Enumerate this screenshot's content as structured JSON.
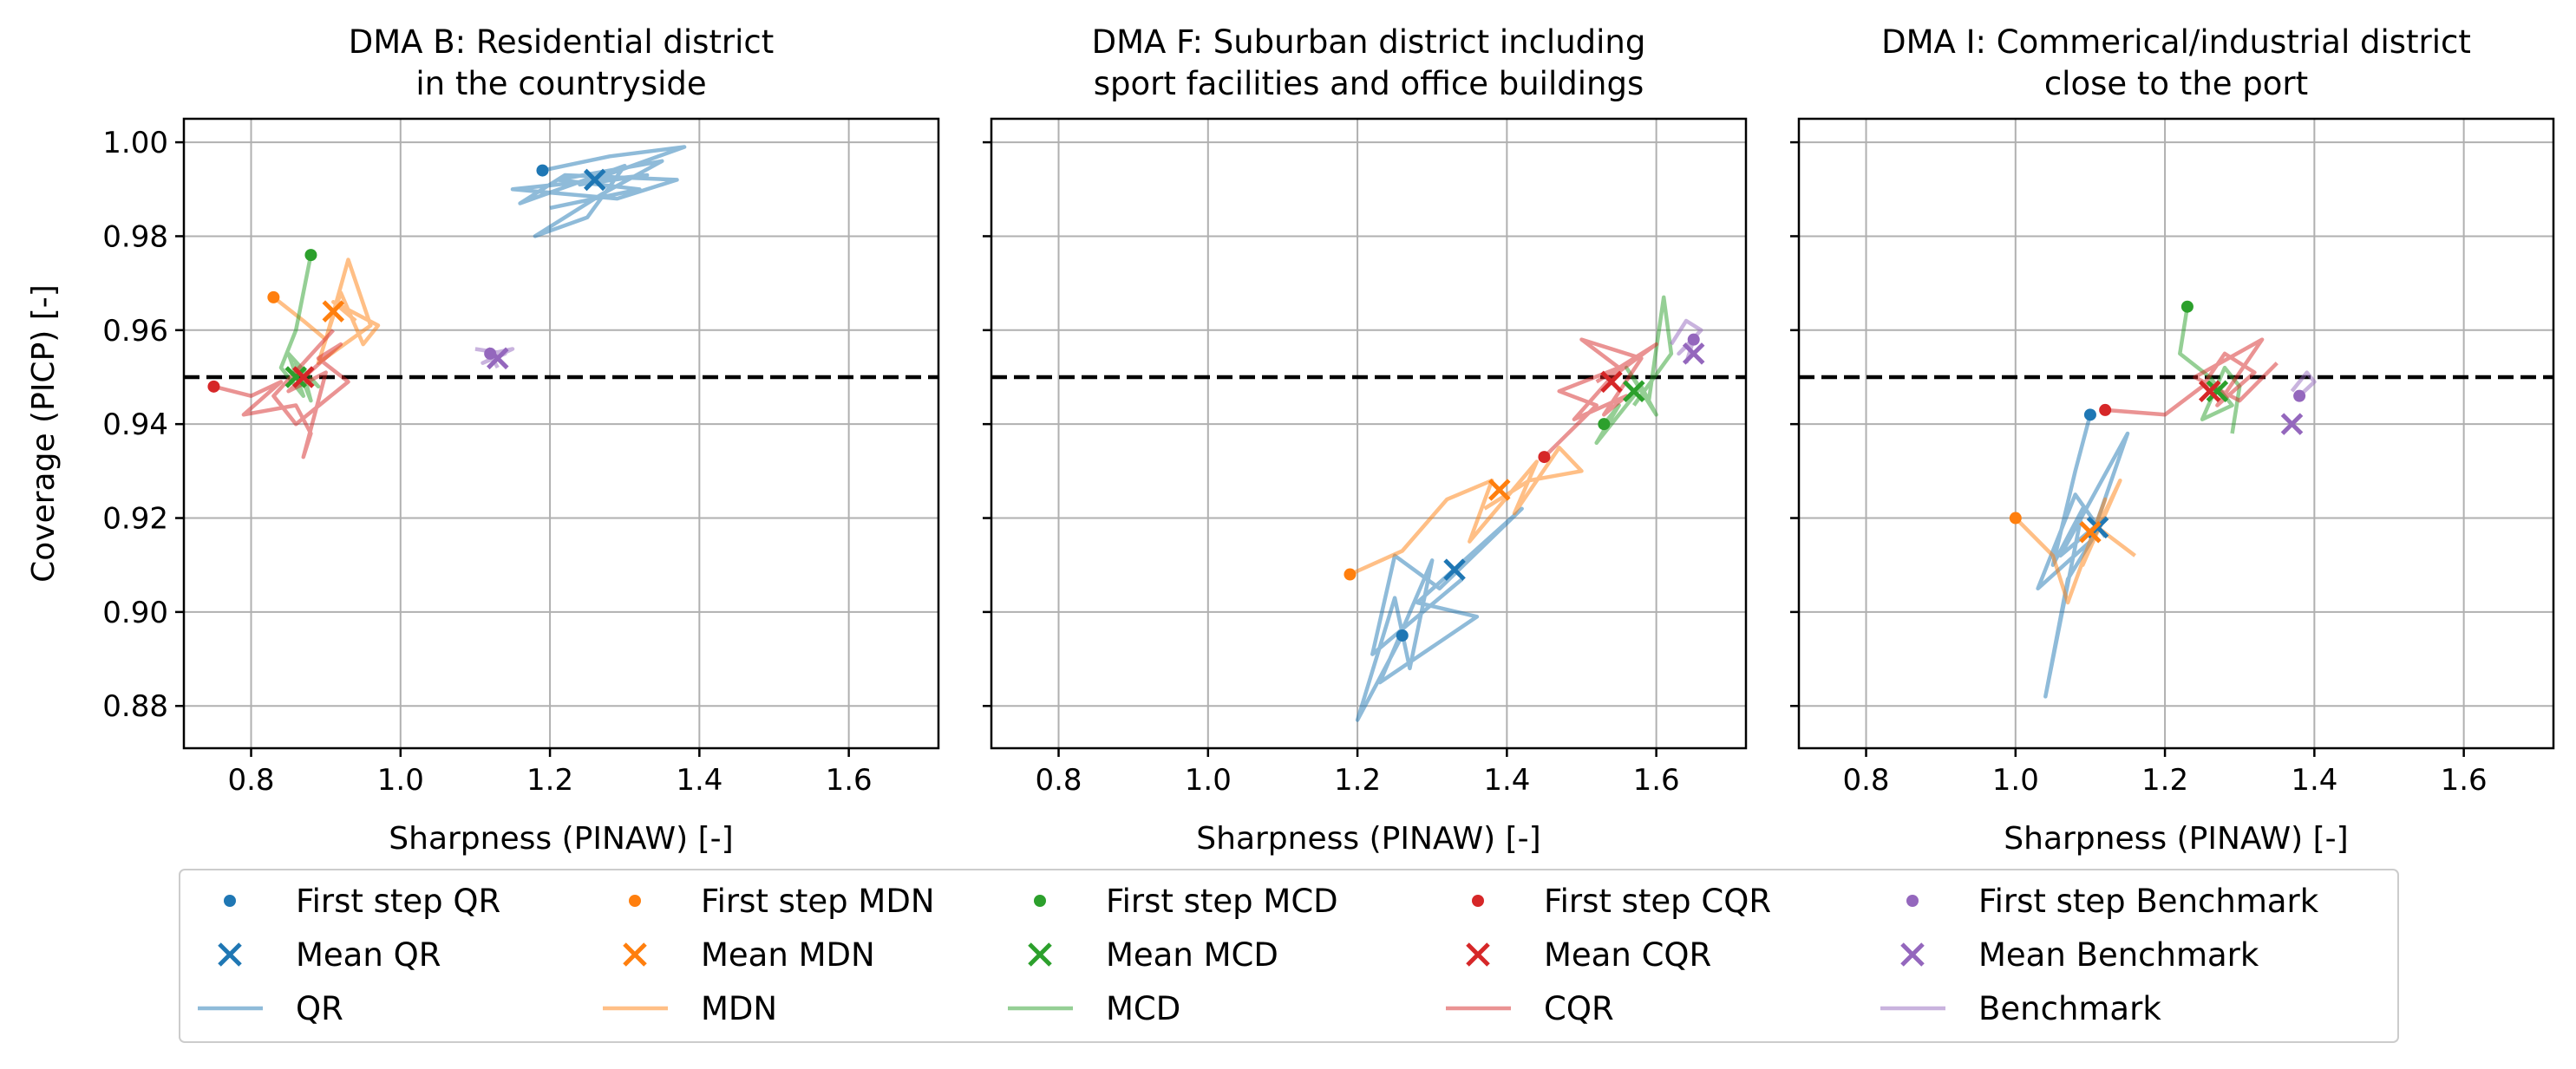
{
  "chart_data": {
    "type": "line",
    "ylabel": "Coverage (PICP) [-]",
    "xlabel": "Sharpness (PINAW) [-]",
    "xlim": [
      0.71,
      1.72
    ],
    "ylim": [
      0.871,
      1.005
    ],
    "xticks": [
      0.8,
      1.0,
      1.2,
      1.4,
      1.6
    ],
    "xtick_labels": [
      "0.8",
      "1.0",
      "1.2",
      "1.4",
      "1.6"
    ],
    "yticks": [
      0.88,
      0.9,
      0.92,
      0.94,
      0.96,
      0.98,
      1.0
    ],
    "ytick_labels": [
      "0.88",
      "0.90",
      "0.92",
      "0.94",
      "0.96",
      "0.98",
      "1.00"
    ],
    "reference_line": 0.95,
    "grid": true,
    "legend_position": "bottom",
    "legend": [
      {
        "label": "First step QR",
        "kind": "dot",
        "color": "#1f77b4"
      },
      {
        "label": "First step MDN",
        "kind": "dot",
        "color": "#ff7f0e"
      },
      {
        "label": "First step MCD",
        "kind": "dot",
        "color": "#2ca02c"
      },
      {
        "label": "First step CQR",
        "kind": "dot",
        "color": "#d62728"
      },
      {
        "label": "First step Benchmark",
        "kind": "dot",
        "color": "#9467bd"
      },
      {
        "label": "Mean QR",
        "kind": "cross",
        "color": "#1f77b4"
      },
      {
        "label": "Mean MDN",
        "kind": "cross",
        "color": "#ff7f0e"
      },
      {
        "label": "Mean MCD",
        "kind": "cross",
        "color": "#2ca02c"
      },
      {
        "label": "Mean CQR",
        "kind": "cross",
        "color": "#d62728"
      },
      {
        "label": "Mean Benchmark",
        "kind": "cross",
        "color": "#9467bd"
      },
      {
        "label": "QR",
        "kind": "line",
        "color": "#1f77b4"
      },
      {
        "label": "MDN",
        "kind": "line",
        "color": "#ff7f0e"
      },
      {
        "label": "MCD",
        "kind": "line",
        "color": "#2ca02c"
      },
      {
        "label": "CQR",
        "kind": "line",
        "color": "#d62728"
      },
      {
        "label": "Benchmark",
        "kind": "line",
        "color": "#9467bd"
      }
    ],
    "panels": [
      {
        "title_line1": "DMA B: Residential district",
        "title_line2": "in the countryside",
        "series": [
          {
            "name": "QR",
            "color": "#1f77b4",
            "first": [
              1.19,
              0.994
            ],
            "mean": [
              1.26,
              0.992
            ],
            "trajectory": [
              [
                1.19,
                0.994
              ],
              [
                1.28,
                0.997
              ],
              [
                1.38,
                0.999
              ],
              [
                1.24,
                0.991
              ],
              [
                1.33,
                0.993
              ],
              [
                1.15,
                0.99
              ],
              [
                1.29,
                0.988
              ],
              [
                1.37,
                0.992
              ],
              [
                1.22,
                0.993
              ],
              [
                1.16,
                0.987
              ],
              [
                1.3,
                0.995
              ],
              [
                1.25,
                0.984
              ],
              [
                1.18,
                0.98
              ],
              [
                1.27,
                0.989
              ],
              [
                1.35,
                0.996
              ],
              [
                1.21,
                0.992
              ],
              [
                1.32,
                0.99
              ],
              [
                1.2,
                0.986
              ]
            ]
          },
          {
            "name": "MDN",
            "color": "#ff7f0e",
            "first": [
              0.83,
              0.967
            ],
            "mean": [
              0.91,
              0.964
            ],
            "trajectory": [
              [
                0.83,
                0.967
              ],
              [
                0.87,
                0.962
              ],
              [
                0.9,
                0.958
              ],
              [
                0.93,
                0.975
              ],
              [
                0.96,
                0.961
              ],
              [
                0.89,
                0.953
              ],
              [
                0.92,
                0.968
              ],
              [
                0.95,
                0.957
              ],
              [
                0.97,
                0.961
              ],
              [
                0.91,
                0.966
              ],
              [
                0.94,
                0.962
              ]
            ]
          },
          {
            "name": "MCD",
            "color": "#2ca02c",
            "first": [
              0.88,
              0.976
            ],
            "mean": [
              0.86,
              0.95
            ],
            "trajectory": [
              [
                0.88,
                0.976
              ],
              [
                0.86,
                0.96
              ],
              [
                0.84,
                0.952
              ],
              [
                0.87,
                0.946
              ],
              [
                0.85,
                0.955
              ],
              [
                0.89,
                0.948
              ],
              [
                0.86,
                0.953
              ],
              [
                0.88,
                0.945
              ],
              [
                0.87,
                0.951
              ]
            ]
          },
          {
            "name": "CQR",
            "color": "#d62728",
            "first": [
              0.75,
              0.948
            ],
            "mean": [
              0.87,
              0.95
            ],
            "trajectory": [
              [
                0.75,
                0.948
              ],
              [
                0.8,
                0.946
              ],
              [
                0.84,
                0.949
              ],
              [
                0.79,
                0.942
              ],
              [
                0.86,
                0.944
              ],
              [
                0.88,
                0.938
              ],
              [
                0.87,
                0.933
              ],
              [
                0.9,
                0.951
              ],
              [
                0.85,
                0.947
              ],
              [
                0.92,
                0.957
              ],
              [
                0.89,
                0.954
              ],
              [
                0.93,
                0.949
              ],
              [
                0.86,
                0.94
              ],
              [
                0.83,
                0.946
              ],
              [
                0.91,
                0.96
              ]
            ]
          },
          {
            "name": "Benchmark",
            "color": "#9467bd",
            "first": [
              1.12,
              0.955
            ],
            "mean": [
              1.13,
              0.954
            ],
            "trajectory": [
              [
                1.1,
                0.956
              ],
              [
                1.14,
                0.955
              ],
              [
                1.11,
                0.953
              ],
              [
                1.15,
                0.956
              ],
              [
                1.12,
                0.955
              ],
              [
                1.13,
                0.952
              ]
            ]
          }
        ]
      },
      {
        "title_line1": "DMA F: Suburban district including",
        "title_line2": "sport facilities and office buildings",
        "series": [
          {
            "name": "QR",
            "color": "#1f77b4",
            "first": [
              1.26,
              0.895
            ],
            "mean": [
              1.33,
              0.909
            ],
            "trajectory": [
              [
                1.26,
                0.895
              ],
              [
                1.2,
                0.877
              ],
              [
                1.25,
                0.903
              ],
              [
                1.27,
                0.888
              ],
              [
                1.3,
                0.911
              ],
              [
                1.23,
                0.885
              ],
              [
                1.36,
                0.899
              ],
              [
                1.28,
                0.902
              ],
              [
                1.42,
                0.922
              ],
              [
                1.31,
                0.905
              ],
              [
                1.25,
                0.912
              ],
              [
                1.22,
                0.891
              ],
              [
                1.34,
                0.907
              ]
            ]
          },
          {
            "name": "MDN",
            "color": "#ff7f0e",
            "first": [
              1.19,
              0.908
            ],
            "mean": [
              1.39,
              0.926
            ],
            "trajectory": [
              [
                1.19,
                0.908
              ],
              [
                1.26,
                0.913
              ],
              [
                1.32,
                0.924
              ],
              [
                1.38,
                0.928
              ],
              [
                1.35,
                0.915
              ],
              [
                1.44,
                0.932
              ],
              [
                1.41,
                0.921
              ],
              [
                1.47,
                0.935
              ],
              [
                1.5,
                0.93
              ],
              [
                1.43,
                0.928
              ],
              [
                1.37,
                0.922
              ]
            ]
          },
          {
            "name": "MCD",
            "color": "#2ca02c",
            "first": [
              1.53,
              0.94
            ],
            "mean": [
              1.57,
              0.947
            ],
            "trajectory": [
              [
                1.53,
                0.94
              ],
              [
                1.55,
                0.944
              ],
              [
                1.52,
                0.936
              ],
              [
                1.58,
                0.948
              ],
              [
                1.6,
                0.942
              ],
              [
                1.56,
                0.952
              ],
              [
                1.59,
                0.945
              ],
              [
                1.61,
                0.967
              ],
              [
                1.62,
                0.955
              ],
              [
                1.57,
                0.944
              ]
            ]
          },
          {
            "name": "CQR",
            "color": "#d62728",
            "first": [
              1.45,
              0.933
            ],
            "mean": [
              1.54,
              0.949
            ],
            "trajectory": [
              [
                1.45,
                0.933
              ],
              [
                1.52,
                0.944
              ],
              [
                1.47,
                0.947
              ],
              [
                1.55,
                0.952
              ],
              [
                1.5,
                0.958
              ],
              [
                1.58,
                0.954
              ],
              [
                1.53,
                0.942
              ],
              [
                1.56,
                0.946
              ],
              [
                1.49,
                0.941
              ],
              [
                1.54,
                0.95
              ],
              [
                1.6,
                0.957
              ],
              [
                1.52,
                0.949
              ]
            ]
          },
          {
            "name": "Benchmark",
            "color": "#9467bd",
            "first": [
              1.65,
              0.958
            ],
            "mean": [
              1.65,
              0.955
            ],
            "trajectory": [
              [
                1.62,
                0.957
              ],
              [
                1.64,
                0.962
              ],
              [
                1.66,
                0.96
              ],
              [
                1.63,
                0.955
              ],
              [
                1.65,
                0.958
              ],
              [
                1.64,
                0.953
              ]
            ]
          }
        ]
      },
      {
        "title_line1": "DMA I: Commerical/industrial district",
        "title_line2": "close to the port",
        "series": [
          {
            "name": "QR",
            "color": "#1f77b4",
            "first": [
              1.1,
              0.942
            ],
            "mean": [
              1.11,
              0.918
            ],
            "trajectory": [
              [
                1.1,
                0.942
              ],
              [
                1.08,
                0.93
              ],
              [
                1.05,
                0.91
              ],
              [
                1.09,
                0.922
              ],
              [
                1.04,
                0.882
              ],
              [
                1.07,
                0.907
              ],
              [
                1.12,
                0.92
              ],
              [
                1.06,
                0.912
              ],
              [
                1.15,
                0.938
              ],
              [
                1.1,
                0.915
              ],
              [
                1.03,
                0.905
              ],
              [
                1.08,
                0.925
              ],
              [
                1.12,
                0.916
              ]
            ]
          },
          {
            "name": "MDN",
            "color": "#ff7f0e",
            "first": [
              1.0,
              0.92
            ],
            "mean": [
              1.1,
              0.917
            ],
            "trajectory": [
              [
                1.0,
                0.92
              ],
              [
                1.05,
                0.912
              ],
              [
                1.07,
                0.902
              ],
              [
                1.12,
                0.924
              ],
              [
                1.09,
                0.91
              ],
              [
                1.14,
                0.928
              ],
              [
                1.11,
                0.918
              ],
              [
                1.16,
                0.912
              ]
            ]
          },
          {
            "name": "MCD",
            "color": "#2ca02c",
            "first": [
              1.23,
              0.965
            ],
            "mean": [
              1.27,
              0.947
            ],
            "trajectory": [
              [
                1.23,
                0.965
              ],
              [
                1.22,
                0.955
              ],
              [
                1.26,
                0.95
              ],
              [
                1.29,
                0.944
              ],
              [
                1.25,
                0.941
              ],
              [
                1.28,
                0.952
              ],
              [
                1.3,
                0.948
              ],
              [
                1.29,
                0.938
              ]
            ]
          },
          {
            "name": "CQR",
            "color": "#d62728",
            "first": [
              1.12,
              0.943
            ],
            "mean": [
              1.26,
              0.947
            ],
            "trajectory": [
              [
                1.12,
                0.943
              ],
              [
                1.2,
                0.942
              ],
              [
                1.25,
                0.948
              ],
              [
                1.28,
                0.955
              ],
              [
                1.32,
                0.951
              ],
              [
                1.27,
                0.944
              ],
              [
                1.33,
                0.958
              ],
              [
                1.24,
                0.95
              ],
              [
                1.3,
                0.945
              ],
              [
                1.35,
                0.953
              ]
            ]
          },
          {
            "name": "Benchmark",
            "color": "#9467bd",
            "first": [
              1.38,
              0.946
            ],
            "mean": [
              1.37,
              0.94
            ],
            "trajectory": [
              [
                1.37,
                0.947
              ],
              [
                1.39,
                0.951
              ],
              [
                1.4,
                0.949
              ],
              [
                1.38,
                0.946
              ]
            ]
          }
        ]
      }
    ]
  }
}
